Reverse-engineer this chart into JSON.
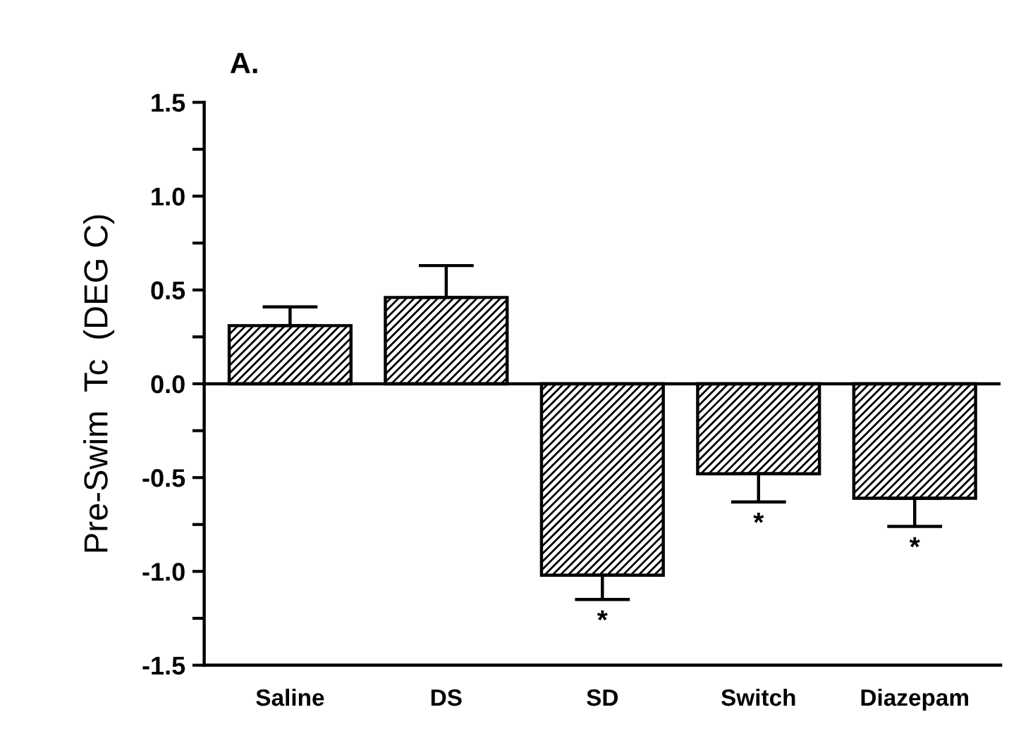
{
  "chart_data": {
    "type": "bar",
    "title": "A.",
    "ylabel": "Pre-Swim  Tc  (DEG C)",
    "categories": [
      "Saline",
      "DS",
      "SD",
      "Switch",
      "Diazepam"
    ],
    "values": [
      0.31,
      0.46,
      -1.02,
      -0.48,
      -0.61
    ],
    "errors": [
      [
        0.31,
        0.41
      ],
      [
        0.46,
        0.63
      ],
      [
        -1.15,
        -1.02
      ],
      [
        -0.63,
        -0.48
      ],
      [
        -0.76,
        -0.61
      ]
    ],
    "color": "#000000",
    "ylim": [
      -1.5,
      1.5
    ],
    "yticks": [
      -1.5,
      {
        "value": -1.25,
        "label": null
      },
      {
        "value": -1.0,
        "label": "-1.0"
      },
      {
        "value": -0.75,
        "label": null
      },
      -0.5,
      {
        "value": -0.25,
        "label": null
      },
      {
        "value": 0,
        "label": "0.0"
      },
      {
        "value": 0.25,
        "label": null
      },
      0.5,
      {
        "value": 0.75,
        "label": null
      },
      {
        "value": 1,
        "label": "1.0"
      },
      {
        "value": 1.25,
        "label": null
      },
      1.5
    ],
    "ref_lines": [
      {
        "axis": "y",
        "value": 0
      }
    ],
    "annotations": [
      {
        "text": "*",
        "x": "SD",
        "y": -1.15
      },
      {
        "text": "*",
        "x": "Switch",
        "y": -0.63
      },
      {
        "text": "*",
        "x": "Diazepam",
        "y": -0.76
      }
    ],
    "grid": false
  }
}
